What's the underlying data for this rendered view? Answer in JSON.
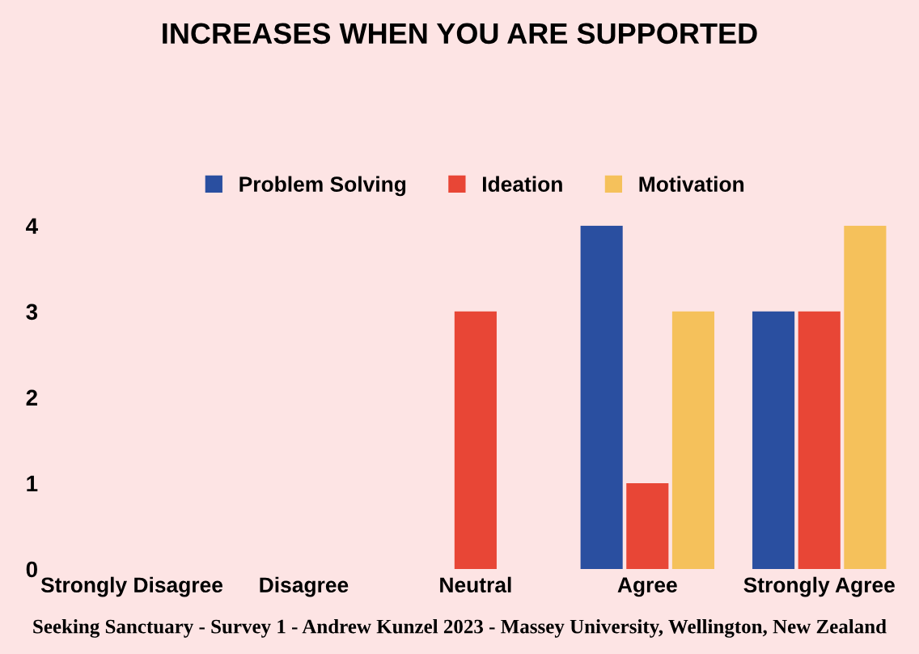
{
  "chart_data": {
    "type": "bar",
    "title": "INCREASES WHEN YOU ARE SUPPORTED",
    "categories": [
      "Strongly Disagree",
      "Disagree",
      "Neutral",
      "Agree",
      "Strongly Agree"
    ],
    "series": [
      {
        "name": "Problem Solving",
        "color": "#2a4fa0",
        "values": [
          0,
          0,
          0,
          4,
          3
        ]
      },
      {
        "name": "Ideation",
        "color": "#e84636",
        "values": [
          0,
          0,
          3,
          1,
          3
        ]
      },
      {
        "name": "Motivation",
        "color": "#f5c15b",
        "values": [
          0,
          0,
          0,
          3,
          4
        ]
      }
    ],
    "ylim": [
      0,
      4
    ],
    "yticks": [
      0,
      1,
      2,
      3,
      4
    ],
    "grid": false,
    "legend": "top",
    "annotations": [
      "Seeking Sanctuary - Survey 1 - Andrew Kunzel 2023 - Massey University, Wellington, New Zealand"
    ]
  }
}
